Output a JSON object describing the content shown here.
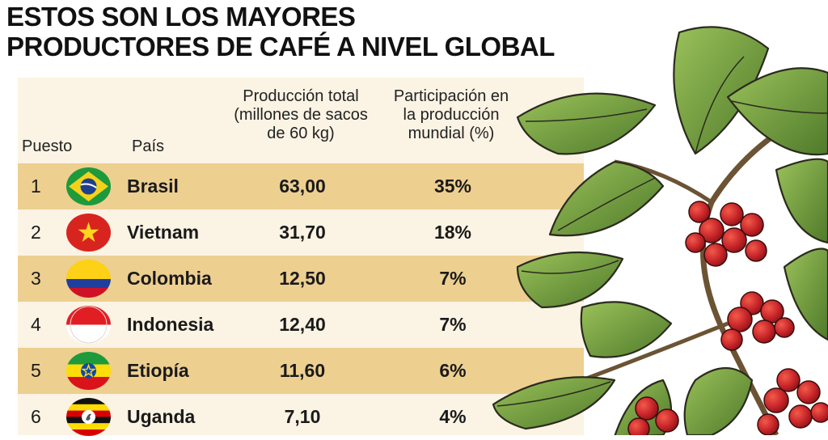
{
  "title": {
    "line1": "ESTOS SON LOS MAYORES",
    "line2": "PRODUCTORES DE CAFÉ A NIVEL GLOBAL"
  },
  "headers": {
    "rank": "Puesto",
    "country": "País",
    "production": [
      "Producción total",
      "(millones de sacos",
      "de 60 kg)"
    ],
    "share": [
      "Participación en",
      "la producción",
      "mundial (%)"
    ]
  },
  "rows": [
    {
      "rank": "1",
      "country": "Brasil",
      "flag": "brazil-flag-icon",
      "production": "63,00",
      "share": "35%"
    },
    {
      "rank": "2",
      "country": "Vietnam",
      "flag": "vietnam-flag-icon",
      "production": "31,70",
      "share": "18%"
    },
    {
      "rank": "3",
      "country": "Colombia",
      "flag": "colombia-flag-icon",
      "production": "12,50",
      "share": "7%"
    },
    {
      "rank": "4",
      "country": "Indonesia",
      "flag": "indonesia-flag-icon",
      "production": "12,40",
      "share": "7%"
    },
    {
      "rank": "5",
      "country": "Etiopía",
      "flag": "ethiopia-flag-icon",
      "production": "11,60",
      "share": "6%"
    },
    {
      "rank": "6",
      "country": "Uganda",
      "flag": "uganda-flag-icon",
      "production": "7,10",
      "share": "4%"
    }
  ],
  "colors": {
    "panel": "#fbf3e4",
    "band": "#edcf90",
    "leaf": "#6f9a3a",
    "berry": "#c0262a"
  }
}
